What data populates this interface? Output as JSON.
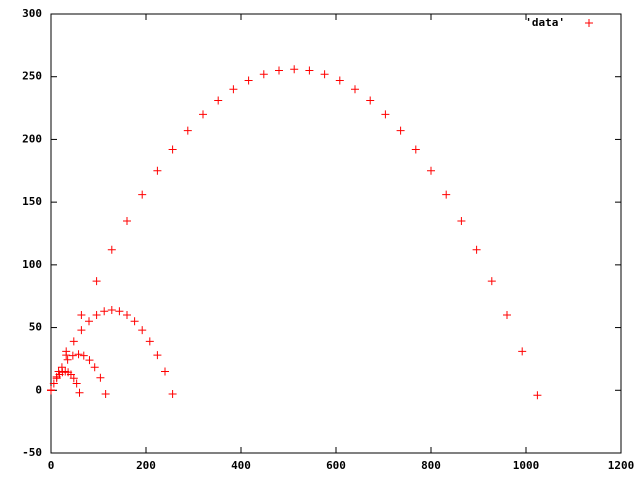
{
  "chart_data": {
    "type": "scatter",
    "xlim": [
      0,
      1200
    ],
    "xticks": [
      0,
      200,
      400,
      600,
      800,
      1000,
      1200
    ],
    "ylim": [
      -50,
      300
    ],
    "yticks": [
      -50,
      0,
      50,
      100,
      150,
      200,
      250,
      300
    ],
    "legend_position": "upper right",
    "series": [
      {
        "name": "'data'",
        "color": "#ff0000",
        "x": [
          0,
          32,
          64,
          96,
          128,
          160,
          192,
          224,
          256,
          288,
          320,
          352,
          384,
          416,
          448,
          480,
          512,
          544,
          576,
          608,
          640,
          672,
          704,
          736,
          768,
          800,
          832,
          864,
          896,
          928,
          960,
          992,
          1024,
          0,
          16,
          32,
          48,
          64,
          80,
          96,
          112,
          128,
          144,
          160,
          176,
          192,
          208,
          224,
          240,
          256,
          0,
          12,
          23,
          35,
          46,
          58,
          69,
          81,
          92,
          104,
          115,
          0,
          6,
          12,
          18,
          24,
          30,
          36,
          42,
          48,
          54,
          60
        ],
        "y": [
          0,
          31,
          60,
          87,
          112,
          135,
          156,
          175,
          192,
          207,
          220,
          231,
          240,
          247,
          252,
          255,
          256,
          255,
          252,
          247,
          240,
          231,
          220,
          207,
          192,
          175,
          156,
          135,
          112,
          87,
          60,
          31,
          -4,
          0,
          15,
          28,
          39,
          48,
          55,
          60,
          63,
          64,
          63,
          60,
          55,
          48,
          39,
          28,
          15,
          -3,
          0,
          10.7,
          18.4,
          24.3,
          27.6,
          28.7,
          27.6,
          24,
          18.4,
          10,
          -3,
          0,
          5.4,
          9.6,
          12.6,
          14.4,
          15,
          14.4,
          12.6,
          9.6,
          5.4,
          -2
        ]
      }
    ]
  }
}
